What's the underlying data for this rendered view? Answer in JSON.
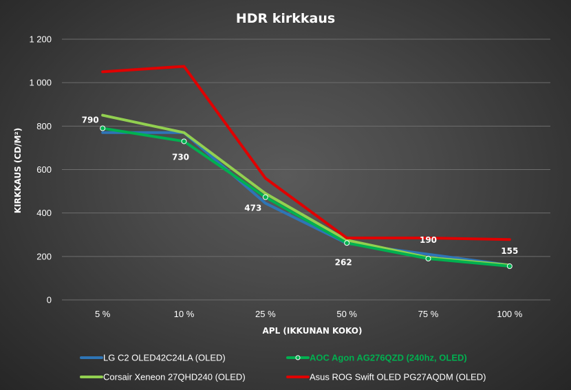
{
  "chart_data": {
    "type": "line",
    "title": "HDR kirkkaus",
    "xlabel": "APL (IKKUNAN KOKO)",
    "ylabel": "KIRKKAUS (CD/M²)",
    "categories": [
      "5 %",
      "10 %",
      "25 %",
      "50 %",
      "75 %",
      "100 %"
    ],
    "ylim": [
      0,
      1200
    ],
    "yticks": [
      0,
      200,
      400,
      600,
      800,
      1000,
      1200
    ],
    "ytick_labels": [
      "0",
      "200",
      "400",
      "600",
      "800",
      "1 000",
      "1 200"
    ],
    "grid": true,
    "legend_position": "bottom",
    "series": [
      {
        "name": "LG C2 OLED42C24LA (OLED)",
        "color": "#2e75b6",
        "values": [
          770,
          770,
          445,
          260,
          210,
          160
        ],
        "markers": false,
        "labels": []
      },
      {
        "name": "AOC Agon AG276QZD (240hz, OLED)",
        "color": "#00b050",
        "values": [
          790,
          730,
          473,
          262,
          190,
          155
        ],
        "markers": true,
        "labels": [
          "790",
          "730",
          "473",
          "262",
          "190",
          "155"
        ]
      },
      {
        "name": "Corsair Xeneon 27QHD240 (OLED)",
        "color": "#92d050",
        "values": [
          850,
          770,
          490,
          275,
          195,
          160
        ],
        "markers": false,
        "labels": []
      },
      {
        "name": "Asus ROG Swift OLED PG27AQDM (OLED)",
        "color": "#e00000",
        "values": [
          1050,
          1075,
          560,
          285,
          285,
          278
        ],
        "markers": false,
        "labels": []
      }
    ]
  }
}
